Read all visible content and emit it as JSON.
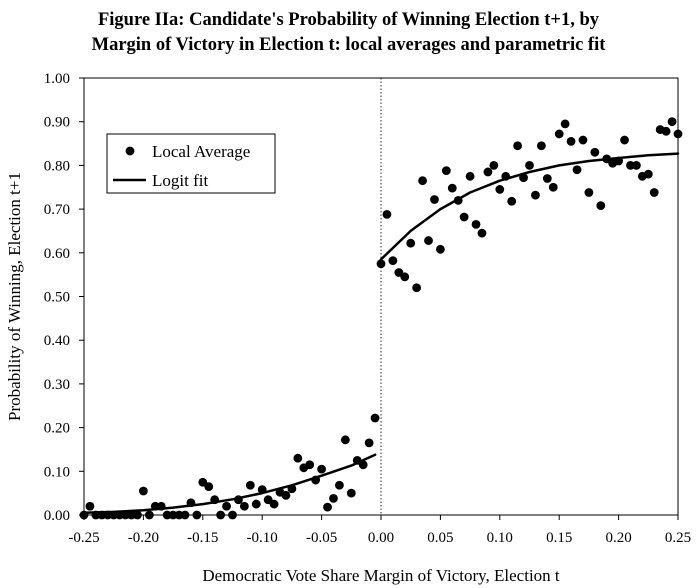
{
  "chart_data": {
    "type": "scatter",
    "title_lines": [
      "Figure IIa: Candidate's Probability of Winning Election t+1, by",
      "Margin of Victory in Election t: local averages and parametric fit"
    ],
    "xlabel": "Democratic Vote Share Margin of Victory, Election t",
    "ylabel": "Probability of Winning, Election t+1",
    "xlim": [
      -0.25,
      0.25
    ],
    "ylim": [
      0,
      1
    ],
    "x_ticks": [
      "-0.25",
      "-0.20",
      "-0.15",
      "-0.10",
      "-0.05",
      "0.00",
      "0.05",
      "0.10",
      "0.15",
      "0.20",
      "0.25"
    ],
    "y_ticks": [
      "0.00",
      "0.10",
      "0.20",
      "0.30",
      "0.40",
      "0.50",
      "0.60",
      "0.70",
      "0.80",
      "0.90",
      "1.00"
    ],
    "cutoff_line": {
      "x": 0,
      "style": "dotted"
    },
    "legend": {
      "position": "top-left",
      "entries": [
        {
          "label": "Local Average",
          "marker": "dot"
        },
        {
          "label": "Logit fit",
          "marker": "line"
        }
      ]
    },
    "series": [
      {
        "name": "Local Average",
        "kind": "points",
        "points": [
          [
            -0.25,
            0.0
          ],
          [
            -0.245,
            0.02
          ],
          [
            -0.24,
            0.0
          ],
          [
            -0.235,
            0.0
          ],
          [
            -0.23,
            0.0
          ],
          [
            -0.225,
            0.0
          ],
          [
            -0.22,
            0.0
          ],
          [
            -0.215,
            0.0
          ],
          [
            -0.21,
            0.0
          ],
          [
            -0.205,
            0.0
          ],
          [
            -0.2,
            0.055
          ],
          [
            -0.195,
            0.0
          ],
          [
            -0.19,
            0.02
          ],
          [
            -0.185,
            0.02
          ],
          [
            -0.18,
            0.0
          ],
          [
            -0.175,
            0.0
          ],
          [
            -0.17,
            0.0
          ],
          [
            -0.165,
            0.0
          ],
          [
            -0.16,
            0.028
          ],
          [
            -0.155,
            0.0
          ],
          [
            -0.15,
            0.075
          ],
          [
            -0.145,
            0.065
          ],
          [
            -0.14,
            0.035
          ],
          [
            -0.135,
            0.0
          ],
          [
            -0.13,
            0.02
          ],
          [
            -0.125,
            0.0
          ],
          [
            -0.12,
            0.035
          ],
          [
            -0.115,
            0.02
          ],
          [
            -0.11,
            0.068
          ],
          [
            -0.105,
            0.025
          ],
          [
            -0.1,
            0.058
          ],
          [
            -0.095,
            0.035
          ],
          [
            -0.09,
            0.025
          ],
          [
            -0.085,
            0.052
          ],
          [
            -0.08,
            0.045
          ],
          [
            -0.075,
            0.06
          ],
          [
            -0.07,
            0.13
          ],
          [
            -0.065,
            0.108
          ],
          [
            -0.06,
            0.115
          ],
          [
            -0.055,
            0.08
          ],
          [
            -0.05,
            0.105
          ],
          [
            -0.045,
            0.018
          ],
          [
            -0.04,
            0.038
          ],
          [
            -0.035,
            0.068
          ],
          [
            -0.03,
            0.172
          ],
          [
            -0.025,
            0.05
          ],
          [
            -0.02,
            0.125
          ],
          [
            -0.015,
            0.115
          ],
          [
            -0.01,
            0.165
          ],
          [
            -0.005,
            0.222
          ],
          [
            0.0,
            0.575
          ],
          [
            0.005,
            0.688
          ],
          [
            0.01,
            0.582
          ],
          [
            0.015,
            0.555
          ],
          [
            0.02,
            0.545
          ],
          [
            0.025,
            0.622
          ],
          [
            0.03,
            0.52
          ],
          [
            0.035,
            0.765
          ],
          [
            0.04,
            0.628
          ],
          [
            0.045,
            0.722
          ],
          [
            0.05,
            0.608
          ],
          [
            0.055,
            0.788
          ],
          [
            0.06,
            0.748
          ],
          [
            0.065,
            0.72
          ],
          [
            0.07,
            0.682
          ],
          [
            0.075,
            0.775
          ],
          [
            0.08,
            0.665
          ],
          [
            0.085,
            0.645
          ],
          [
            0.09,
            0.785
          ],
          [
            0.095,
            0.8
          ],
          [
            0.1,
            0.745
          ],
          [
            0.105,
            0.775
          ],
          [
            0.11,
            0.718
          ],
          [
            0.115,
            0.845
          ],
          [
            0.12,
            0.772
          ],
          [
            0.125,
            0.8
          ],
          [
            0.13,
            0.732
          ],
          [
            0.135,
            0.845
          ],
          [
            0.14,
            0.77
          ],
          [
            0.145,
            0.75
          ],
          [
            0.15,
            0.872
          ],
          [
            0.155,
            0.895
          ],
          [
            0.16,
            0.855
          ],
          [
            0.165,
            0.79
          ],
          [
            0.17,
            0.858
          ],
          [
            0.175,
            0.738
          ],
          [
            0.18,
            0.83
          ],
          [
            0.185,
            0.708
          ],
          [
            0.19,
            0.815
          ],
          [
            0.195,
            0.805
          ],
          [
            0.2,
            0.81
          ],
          [
            0.205,
            0.858
          ],
          [
            0.21,
            0.8
          ],
          [
            0.215,
            0.8
          ],
          [
            0.22,
            0.775
          ],
          [
            0.225,
            0.78
          ],
          [
            0.23,
            0.738
          ],
          [
            0.235,
            0.882
          ],
          [
            0.24,
            0.878
          ],
          [
            0.245,
            0.9
          ],
          [
            0.25,
            0.872
          ]
        ]
      },
      {
        "name": "Logit fit",
        "kind": "line",
        "segments": [
          [
            [
              -0.25,
              0.005
            ],
            [
              -0.225,
              0.007
            ],
            [
              -0.2,
              0.011
            ],
            [
              -0.175,
              0.017
            ],
            [
              -0.15,
              0.025
            ],
            [
              -0.125,
              0.036
            ],
            [
              -0.1,
              0.05
            ],
            [
              -0.075,
              0.068
            ],
            [
              -0.05,
              0.09
            ],
            [
              -0.025,
              0.113
            ],
            [
              -0.005,
              0.138
            ]
          ],
          [
            [
              0.0,
              0.585
            ],
            [
              0.025,
              0.65
            ],
            [
              0.05,
              0.7
            ],
            [
              0.075,
              0.738
            ],
            [
              0.1,
              0.765
            ],
            [
              0.125,
              0.785
            ],
            [
              0.15,
              0.8
            ],
            [
              0.175,
              0.81
            ],
            [
              0.2,
              0.817
            ],
            [
              0.225,
              0.823
            ],
            [
              0.25,
              0.827
            ]
          ]
        ]
      }
    ]
  }
}
